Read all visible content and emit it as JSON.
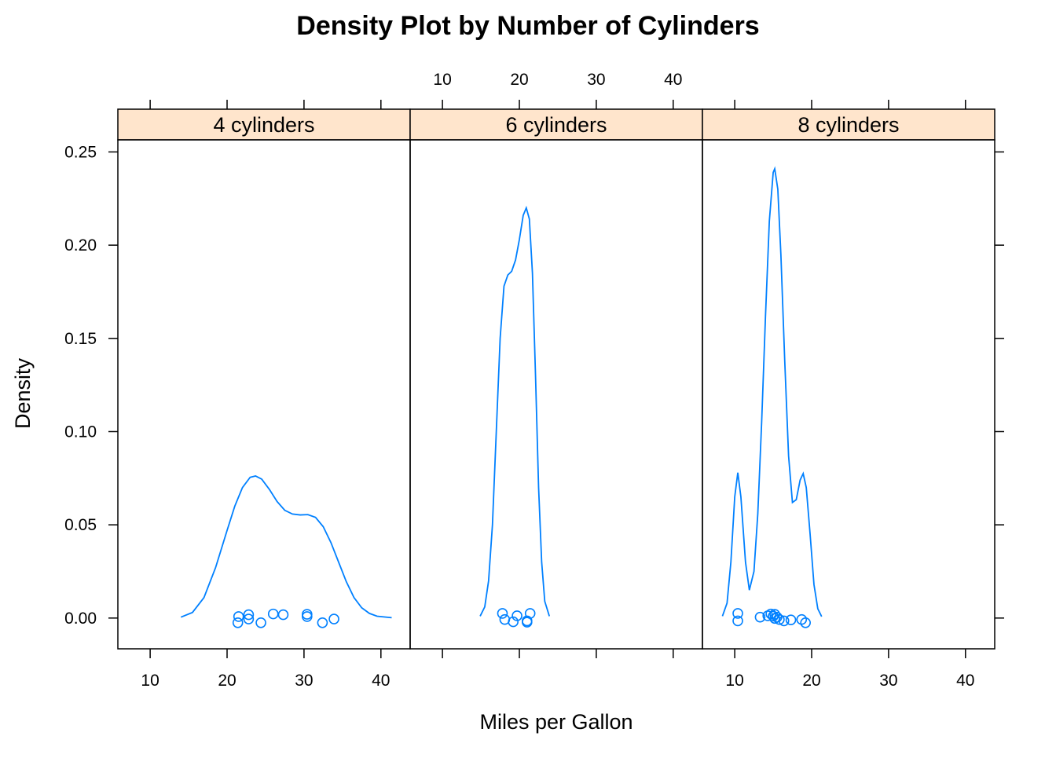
{
  "chart_data": {
    "type": "density",
    "title": "Density Plot by Number of Cylinders",
    "xlabel": "Miles per Gallon",
    "ylabel": "Density",
    "xlim": [
      5.8,
      43.8
    ],
    "ylim": [
      -0.0165,
      0.2565
    ],
    "x_ticks": [
      10,
      20,
      30,
      40
    ],
    "y_ticks": [
      0.0,
      0.05,
      0.1,
      0.15,
      0.2,
      0.25
    ],
    "y_tick_labels": [
      "0.00",
      "0.05",
      "0.10",
      "0.15",
      "0.20",
      "0.25"
    ],
    "layout": "3 panels side by side, alternating tick labels",
    "colors": {
      "line": "#0080ff",
      "strip": "#ffe5cc",
      "frame": "#000000"
    },
    "panels": [
      {
        "strip": "4 cylinders",
        "curve": [
          [
            14.0,
            0.0005
          ],
          [
            15.5,
            0.003
          ],
          [
            17.0,
            0.011
          ],
          [
            18.5,
            0.027
          ],
          [
            20.0,
            0.047
          ],
          [
            21.0,
            0.06
          ],
          [
            22.0,
            0.07
          ],
          [
            23.0,
            0.0755
          ],
          [
            23.7,
            0.0762
          ],
          [
            24.5,
            0.0745
          ],
          [
            25.5,
            0.069
          ],
          [
            26.5,
            0.0625
          ],
          [
            27.5,
            0.0578
          ],
          [
            28.5,
            0.0558
          ],
          [
            29.5,
            0.0553
          ],
          [
            30.5,
            0.0555
          ],
          [
            31.5,
            0.054
          ],
          [
            32.5,
            0.049
          ],
          [
            33.5,
            0.0405
          ],
          [
            34.5,
            0.03
          ],
          [
            35.5,
            0.0195
          ],
          [
            36.5,
            0.011
          ],
          [
            37.5,
            0.0055
          ],
          [
            38.5,
            0.0025
          ],
          [
            39.5,
            0.001
          ],
          [
            41.4,
            0.0002
          ]
        ],
        "points": [
          [
            21.4,
            -0.0025
          ],
          [
            21.5,
            0.0008
          ],
          [
            22.8,
            0.0018
          ],
          [
            22.8,
            -0.0005
          ],
          [
            24.4,
            -0.0025
          ],
          [
            26.0,
            0.0022
          ],
          [
            27.3,
            0.0018
          ],
          [
            30.4,
            0.002
          ],
          [
            30.4,
            0.0008
          ],
          [
            32.4,
            -0.0025
          ],
          [
            33.9,
            -0.0005
          ]
        ]
      },
      {
        "strip": "6 cylinders",
        "curve": [
          [
            14.9,
            0.001
          ],
          [
            15.5,
            0.006
          ],
          [
            16.0,
            0.02
          ],
          [
            16.5,
            0.05
          ],
          [
            17.0,
            0.1
          ],
          [
            17.5,
            0.15
          ],
          [
            18.0,
            0.178
          ],
          [
            18.5,
            0.184
          ],
          [
            19.0,
            0.186
          ],
          [
            19.5,
            0.192
          ],
          [
            20.0,
            0.203
          ],
          [
            20.5,
            0.216
          ],
          [
            20.9,
            0.22
          ],
          [
            21.3,
            0.214
          ],
          [
            21.7,
            0.185
          ],
          [
            22.1,
            0.13
          ],
          [
            22.5,
            0.07
          ],
          [
            22.9,
            0.03
          ],
          [
            23.3,
            0.009
          ],
          [
            23.9,
            0.001
          ]
        ],
        "points": [
          [
            17.8,
            0.0025
          ],
          [
            18.1,
            -0.0008
          ],
          [
            19.2,
            -0.002
          ],
          [
            19.7,
            0.0012
          ],
          [
            21.0,
            -0.0015
          ],
          [
            21.0,
            -0.0022
          ],
          [
            21.4,
            0.0025
          ]
        ]
      },
      {
        "strip": "8 cylinders",
        "curve": [
          [
            8.4,
            0.001
          ],
          [
            9.0,
            0.008
          ],
          [
            9.5,
            0.03
          ],
          [
            10.0,
            0.065
          ],
          [
            10.4,
            0.078
          ],
          [
            10.8,
            0.065
          ],
          [
            11.4,
            0.03
          ],
          [
            11.9,
            0.015
          ],
          [
            12.5,
            0.025
          ],
          [
            13.0,
            0.056
          ],
          [
            13.5,
            0.105
          ],
          [
            14.0,
            0.162
          ],
          [
            14.5,
            0.213
          ],
          [
            15.0,
            0.239
          ],
          [
            15.2,
            0.241
          ],
          [
            15.6,
            0.23
          ],
          [
            16.0,
            0.195
          ],
          [
            16.5,
            0.138
          ],
          [
            17.0,
            0.087
          ],
          [
            17.5,
            0.062
          ],
          [
            18.0,
            0.0635
          ],
          [
            18.5,
            0.074
          ],
          [
            18.9,
            0.0775
          ],
          [
            19.3,
            0.07
          ],
          [
            19.8,
            0.045
          ],
          [
            20.3,
            0.018
          ],
          [
            20.8,
            0.005
          ],
          [
            21.3,
            0.0008
          ]
        ],
        "points": [
          [
            10.4,
            0.0025
          ],
          [
            10.4,
            -0.0015
          ],
          [
            13.3,
            0.0005
          ],
          [
            14.3,
            0.0012
          ],
          [
            14.7,
            0.0022
          ],
          [
            15.0,
            0.001
          ],
          [
            15.2,
            0.002
          ],
          [
            15.2,
            -0.0002
          ],
          [
            15.5,
            0.0005
          ],
          [
            15.8,
            -0.0008
          ],
          [
            16.4,
            -0.0015
          ],
          [
            17.3,
            -0.001
          ],
          [
            18.7,
            -0.0008
          ],
          [
            19.2,
            -0.0025
          ]
        ]
      }
    ]
  }
}
